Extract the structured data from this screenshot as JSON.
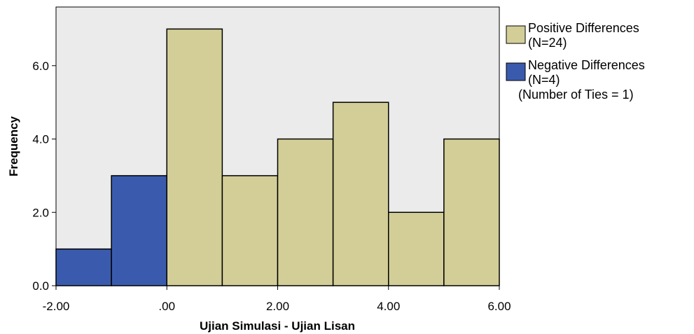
{
  "chart_data": {
    "type": "bar",
    "subtype": "histogram",
    "xlabel": "Ujian Simulasi - Ujian Lisan",
    "ylabel": "Frequency",
    "xlim": [
      -2,
      6
    ],
    "ylim": [
      0,
      7.6
    ],
    "x_ticks": [
      -2,
      0,
      2,
      4,
      6
    ],
    "x_tick_labels": [
      "-2.00",
      ".00",
      "2.00",
      "4.00",
      "6.00"
    ],
    "y_ticks": [
      0,
      2,
      4,
      6
    ],
    "y_tick_labels": [
      "0.0",
      "2.0",
      "4.0",
      "6.0"
    ],
    "grid": false,
    "legend_position": "right",
    "plot_background": "#ebebeb",
    "series": [
      {
        "name": "Positive Differences",
        "count_label": "(N=24)",
        "color": "#d3ce97",
        "bins": [
          {
            "from": 0,
            "to": 1,
            "value": 7
          },
          {
            "from": 1,
            "to": 2,
            "value": 3
          },
          {
            "from": 2,
            "to": 3,
            "value": 4
          },
          {
            "from": 3,
            "to": 4,
            "value": 5
          },
          {
            "from": 4,
            "to": 5,
            "value": 2
          },
          {
            "from": 5,
            "to": 6,
            "value": 4
          }
        ]
      },
      {
        "name": "Negative Differences",
        "count_label": "(N=4)",
        "color": "#3a5bad",
        "bins": [
          {
            "from": -2,
            "to": -1,
            "value": 1
          },
          {
            "from": -1,
            "to": 0,
            "value": 3
          }
        ]
      }
    ],
    "legend_note": "(Number of Ties = 1)"
  }
}
